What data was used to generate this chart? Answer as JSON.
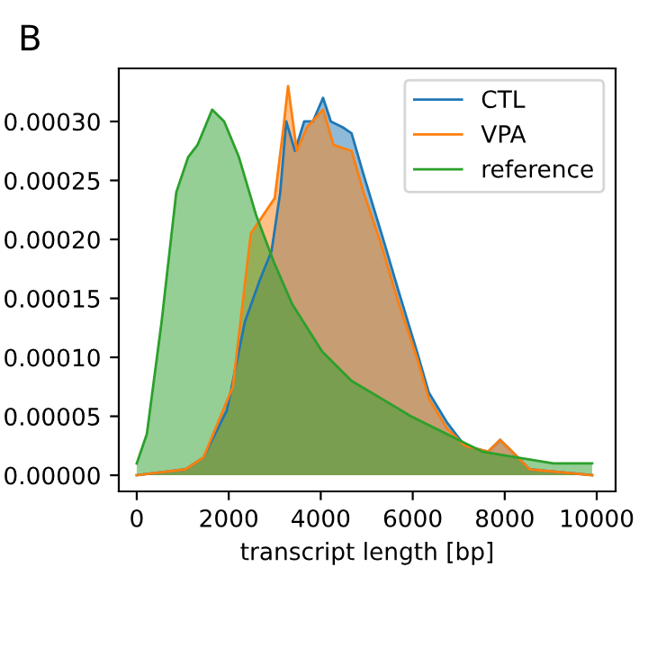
{
  "chart_data": {
    "type": "area",
    "title": "B",
    "xlabel": "transcript length [bp]",
    "xlim": [
      -390,
      10410
    ],
    "ylim": [
      -1.37e-05,
      0.000345
    ],
    "xticks": [
      0,
      2000,
      4000,
      6000,
      8000,
      10000
    ],
    "yticks": [
      {
        "value": 0,
        "label": "0.00000"
      },
      {
        "value": 5e-05,
        "label": "0.00005"
      },
      {
        "value": 0.0001,
        "label": "0.00010"
      },
      {
        "value": 0.00015,
        "label": "0.00015"
      },
      {
        "value": 0.0002,
        "label": "0.00020"
      },
      {
        "value": 0.00025,
        "label": "0.00025"
      },
      {
        "value": 0.0003,
        "label": "0.00030"
      }
    ],
    "legend": "top right",
    "grid": false,
    "series": [
      {
        "name": "CTL",
        "color": "#1f77b4",
        "x": [
          0,
          1060,
          1450,
          1960,
          2350,
          2670,
          2930,
          3120,
          3250,
          3440,
          3640,
          3830,
          4050,
          4220,
          4480,
          4670,
          4930,
          5320,
          5700,
          6090,
          6350,
          6740,
          7130,
          7640,
          7900,
          8160,
          8540,
          9900
        ],
        "values": [
          0,
          5e-06,
          1.5e-05,
          5.5e-05,
          0.00013,
          0.000165,
          0.00019,
          0.00024,
          0.0003,
          0.000275,
          0.0003,
          0.0003,
          0.00032,
          0.0003,
          0.000295,
          0.00029,
          0.000255,
          0.000205,
          0.000155,
          0.000105,
          7e-05,
          4.5e-05,
          2.5e-05,
          2e-05,
          3e-05,
          2e-05,
          5e-06,
          0
        ]
      },
      {
        "name": "VPA",
        "color": "#ff7f0e",
        "x": [
          0,
          1060,
          1450,
          2090,
          2480,
          3000,
          3190,
          3290,
          3480,
          3700,
          4050,
          4280,
          4670,
          4930,
          5320,
          5700,
          6090,
          6350,
          6740,
          7130,
          7640,
          7900,
          8160,
          8540,
          9900
        ],
        "values": [
          0,
          5e-06,
          1.5e-05,
          7.5e-05,
          0.000205,
          0.000235,
          0.000295,
          0.00033,
          0.000275,
          0.000295,
          0.00031,
          0.00028,
          0.000275,
          0.00024,
          0.000195,
          0.000145,
          0.0001,
          6.5e-05,
          4e-05,
          2.5e-05,
          2e-05,
          3e-05,
          2e-05,
          5e-06,
          0
        ]
      },
      {
        "name": "reference",
        "color": "#2ca02c",
        "x": [
          0,
          220,
          540,
          860,
          1120,
          1320,
          1640,
          1900,
          2220,
          2600,
          2990,
          3380,
          4030,
          4670,
          5320,
          5960,
          6740,
          7510,
          8280,
          9060,
          9900
        ],
        "values": [
          1e-05,
          3.5e-05,
          0.00013,
          0.00024,
          0.00027,
          0.00028,
          0.00031,
          0.0003,
          0.00027,
          0.00022,
          0.00018,
          0.000145,
          0.000105,
          8e-05,
          6.5e-05,
          5e-05,
          3.5e-05,
          2e-05,
          1.5e-05,
          1e-05,
          1e-05
        ]
      }
    ]
  }
}
